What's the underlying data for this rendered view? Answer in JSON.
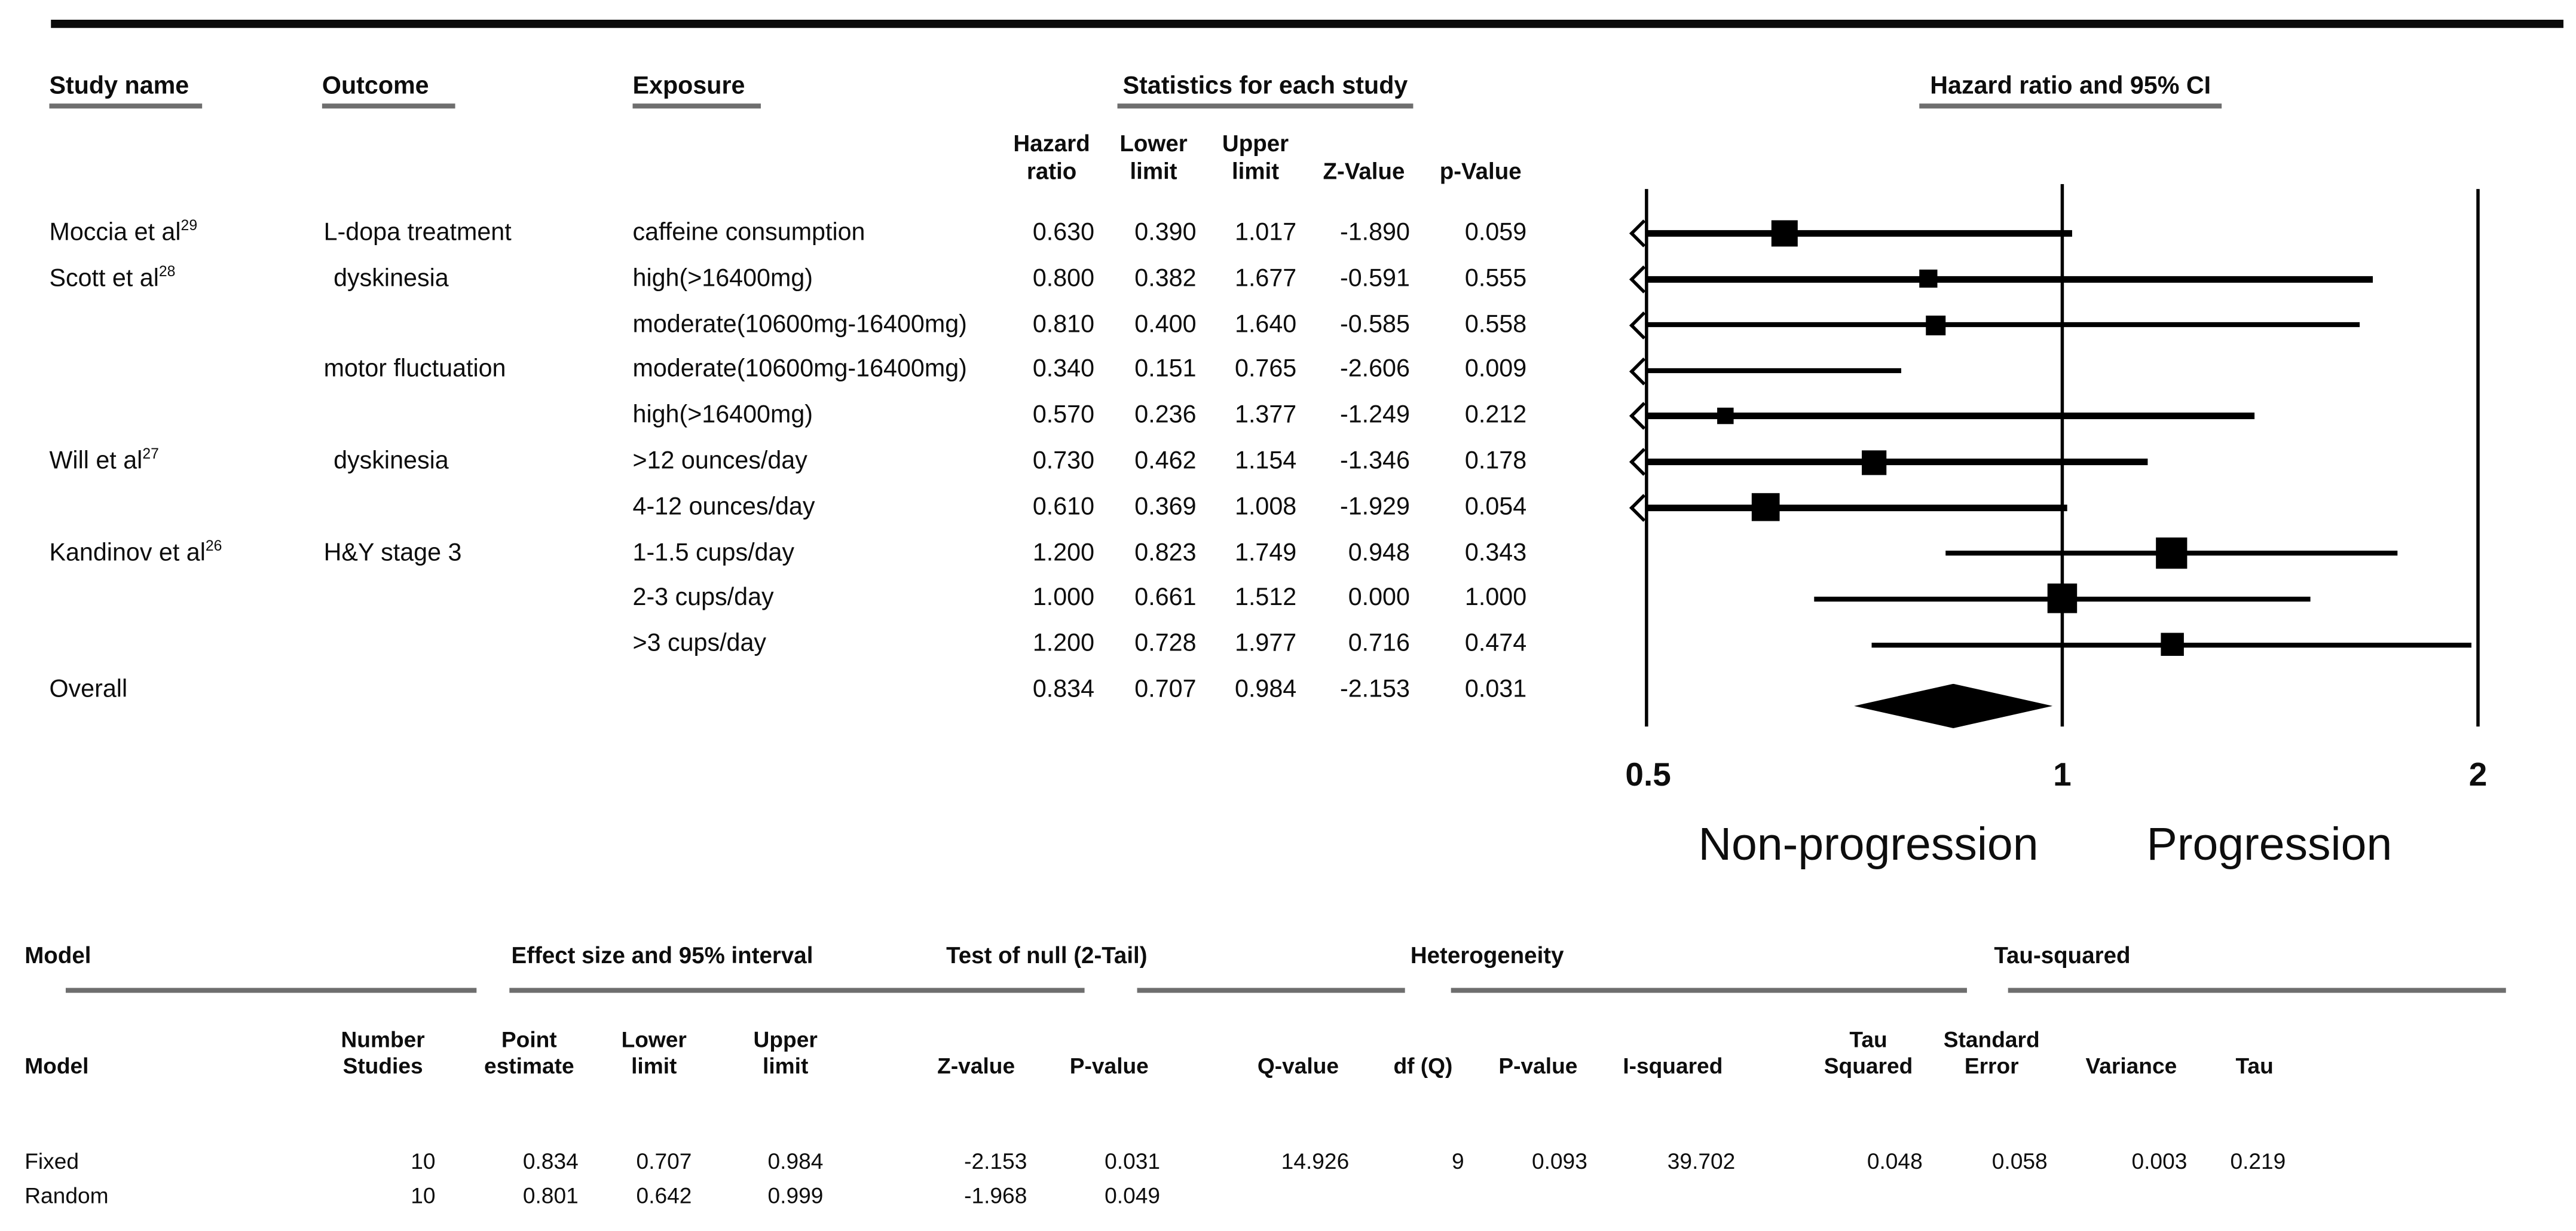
{
  "header": {
    "study_name": "Study name",
    "outcome": "Outcome",
    "exposure": "Exposure",
    "stats_group": "Statistics for each study",
    "plot_group": "Hazard ratio and 95% CI",
    "stat_cols": {
      "hr1": "Hazard",
      "hr2": "ratio",
      "lo1": "Lower",
      "lo2": "limit",
      "up1": "Upper",
      "up2": "limit",
      "z": "Z-Value",
      "p": "p-Value"
    }
  },
  "axis": {
    "t05": "0.5",
    "t1": "1",
    "t2": "2",
    "left": "Non-progression",
    "right": "Progression"
  },
  "overall_label": "Overall",
  "chart_data": {
    "type": "forest",
    "title": "Hazard ratio and 95% CI",
    "x_scale": "log2",
    "xlim": [
      0.5,
      2
    ],
    "x_ticks": [
      0.5,
      1,
      2
    ],
    "direction_labels": {
      "left": "Non-progression",
      "right": "Progression"
    },
    "series": [
      {
        "study": "Moccia et al",
        "sup": "29",
        "outcome": "L-dopa treatment",
        "exposure": "caffeine consumption",
        "hr": 0.63,
        "lower": 0.39,
        "upper": 1.017,
        "z": -1.89,
        "p": 0.059
      },
      {
        "study": "Scott et al",
        "sup": "28",
        "outcome": "dyskinesia",
        "exposure": "high(>16400mg)",
        "hr": 0.8,
        "lower": 0.382,
        "upper": 1.677,
        "z": -0.591,
        "p": 0.555
      },
      {
        "exposure": "moderate(10600mg-16400mg)",
        "hr": 0.81,
        "lower": 0.4,
        "upper": 1.64,
        "z": -0.585,
        "p": 0.558
      },
      {
        "outcome": "motor fluctuation",
        "exposure": "moderate(10600mg-16400mg)",
        "hr": 0.34,
        "lower": 0.151,
        "upper": 0.765,
        "z": -2.606,
        "p": 0.009
      },
      {
        "exposure": "high(>16400mg)",
        "hr": 0.57,
        "lower": 0.236,
        "upper": 1.377,
        "z": -1.249,
        "p": 0.212
      },
      {
        "study": "Will et al",
        "sup": "27",
        "outcome": "dyskinesia",
        "exposure": ">12 ounces/day",
        "hr": 0.73,
        "lower": 0.462,
        "upper": 1.154,
        "z": -1.346,
        "p": 0.178
      },
      {
        "exposure": "4-12 ounces/day",
        "hr": 0.61,
        "lower": 0.369,
        "upper": 1.008,
        "z": -1.929,
        "p": 0.054
      },
      {
        "study": "Kandinov et al",
        "sup": "26",
        "outcome": "H&Y stage 3",
        "exposure": "1-1.5 cups/day",
        "hr": 1.2,
        "lower": 0.823,
        "upper": 1.749,
        "z": 0.948,
        "p": 0.343
      },
      {
        "exposure": "2-3 cups/day",
        "hr": 1.0,
        "lower": 0.661,
        "upper": 1.512,
        "z": 0.0,
        "p": 1.0
      },
      {
        "exposure": ">3 cups/day",
        "hr": 1.2,
        "lower": 0.728,
        "upper": 1.977,
        "z": 0.716,
        "p": 0.474
      }
    ],
    "overall": {
      "hr": 0.834,
      "lower": 0.707,
      "upper": 0.984,
      "z": -2.153,
      "p": 0.031
    }
  },
  "bottom": {
    "groups": [
      "Model",
      "Effect size and 95% interval",
      "Test of null (2-Tail)",
      "Heterogeneity",
      "Tau-squared"
    ],
    "columns": [
      {
        "lines": [
          "",
          "Model"
        ]
      },
      {
        "lines": [
          "Number",
          "Studies"
        ]
      },
      {
        "lines": [
          "Point",
          "estimate"
        ]
      },
      {
        "lines": [
          "Lower",
          "limit"
        ]
      },
      {
        "lines": [
          "Upper",
          "limit"
        ]
      },
      {
        "lines": [
          "",
          "Z-value"
        ]
      },
      {
        "lines": [
          "",
          "P-value"
        ]
      },
      {
        "lines": [
          "",
          "Q-value"
        ]
      },
      {
        "lines": [
          "",
          "df (Q)"
        ]
      },
      {
        "lines": [
          "",
          "P-value"
        ]
      },
      {
        "lines": [
          "",
          "I-squared"
        ]
      },
      {
        "lines": [
          "Tau",
          "Squared"
        ]
      },
      {
        "lines": [
          "Standard",
          "Error"
        ]
      },
      {
        "lines": [
          "",
          "Variance"
        ]
      },
      {
        "lines": [
          "",
          "Tau"
        ]
      }
    ],
    "rows": [
      {
        "model": "Fixed",
        "values": [
          "10",
          "0.834",
          "0.707",
          "0.984",
          "-2.153",
          "0.031",
          "14.926",
          "9",
          "0.093",
          "39.702",
          "0.048",
          "0.058",
          "0.003",
          "0.219"
        ]
      },
      {
        "model": "Random",
        "values": [
          "10",
          "0.801",
          "0.642",
          "0.999",
          "-1.968",
          "0.049"
        ]
      }
    ]
  }
}
